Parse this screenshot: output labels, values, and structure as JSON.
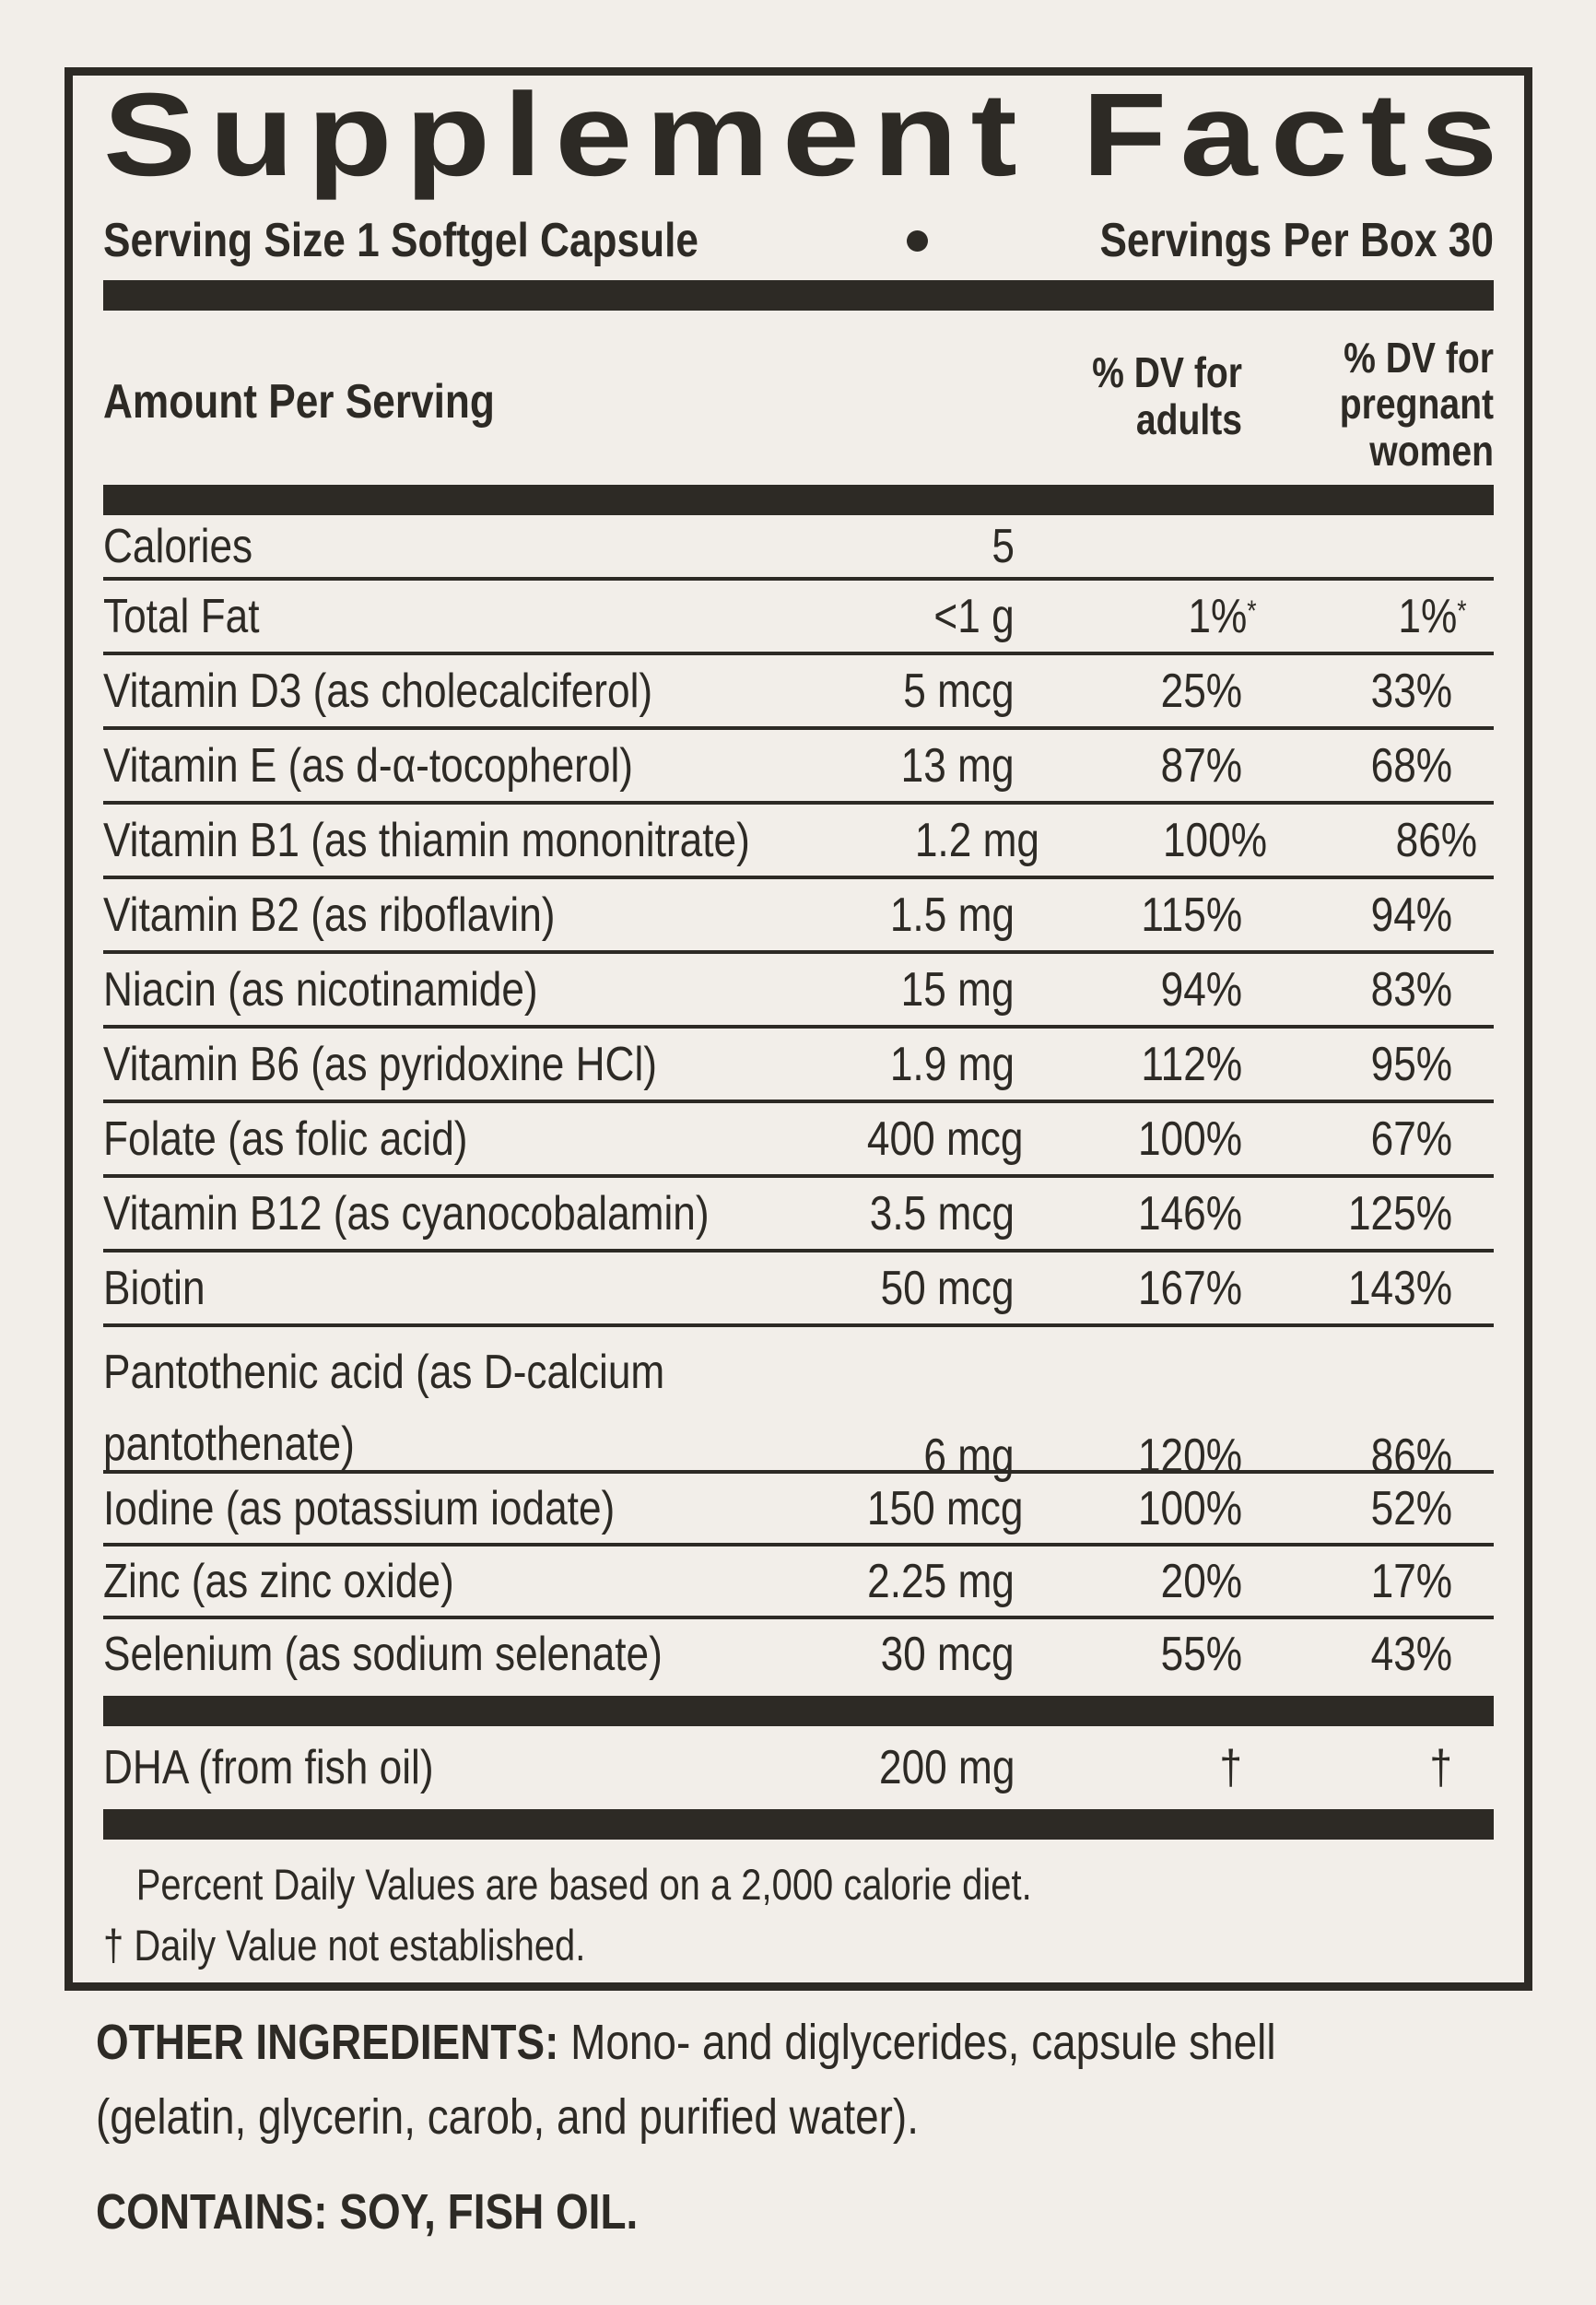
{
  "title": "Supplement Facts",
  "serving": {
    "size_label": "Serving Size 1 Softgel Capsule",
    "per_box_label": "Servings Per Box 30"
  },
  "columns": {
    "amount": "Amount Per Serving",
    "adults_line1": "% DV for",
    "adults_line2": "adults",
    "pregnant_line1": "% DV for",
    "pregnant_line2": "pregnant",
    "pregnant_line3": "women"
  },
  "rows": [
    {
      "name": "Calories",
      "amount": "5",
      "adults": "",
      "pregnant": ""
    },
    {
      "name": "Total Fat",
      "amount": "<1 g",
      "adults": "1%",
      "adults_sup": "*",
      "pregnant": "1%",
      "pregnant_sup": "*"
    },
    {
      "name": "Vitamin D3 (as cholecalciferol)",
      "amount": "5 mcg",
      "adults": "25%",
      "pregnant": "33%"
    },
    {
      "name": "Vitamin E (as d-α-tocopherol)",
      "amount": "13 mg",
      "adults": "87%",
      "pregnant": "68%"
    },
    {
      "name": "Vitamin B1 (as thiamin mononitrate)",
      "amount": "1.2 mg",
      "adults": "100%",
      "pregnant": "86%"
    },
    {
      "name": "Vitamin B2 (as riboflavin)",
      "amount": "1.5 mg",
      "adults": "115%",
      "pregnant": "94%"
    },
    {
      "name": "Niacin (as nicotinamide)",
      "amount": "15 mg",
      "adults": "94%",
      "pregnant": "83%"
    },
    {
      "name": "Vitamin B6 (as pyridoxine HCl)",
      "amount": "1.9 mg",
      "adults": "112%",
      "pregnant": "95%"
    },
    {
      "name": "Folate (as folic acid)",
      "amount": "400 mcg",
      "adults": "100%",
      "pregnant": "67%"
    },
    {
      "name": "Vitamin B12 (as cyanocobalamin)",
      "amount": "3.5 mcg",
      "adults": "146%",
      "pregnant": "125%"
    },
    {
      "name": "Biotin",
      "amount": "50 mcg",
      "adults": "167%",
      "pregnant": "143%"
    },
    {
      "name_line1": "Pantothenic acid (as D-calcium",
      "name_line2": "pantothenate)",
      "amount": "6 mg",
      "adults": "120%",
      "pregnant": "86%"
    },
    {
      "name": "Iodine (as potassium iodate)",
      "amount": "150 mcg",
      "adults": "100%",
      "pregnant": "52%"
    },
    {
      "name": "Zinc (as zinc oxide)",
      "amount": "2.25 mg",
      "adults": "20%",
      "pregnant": "17%"
    },
    {
      "name": "Selenium (as sodium selenate)",
      "amount": "30 mcg",
      "adults": "55%",
      "pregnant": "43%"
    }
  ],
  "dha_row": {
    "name": "DHA (from fish oil)",
    "amount": "200 mg",
    "adults": "†",
    "pregnant": "†"
  },
  "footnotes": {
    "line1": "Percent Daily Values are based on a 2,000 calorie diet.",
    "line2": "† Daily Value not established."
  },
  "other_ingredients": {
    "heading": "OTHER INGREDIENTS:",
    "text": " Mono- and diglycerides, capsule shell (gelatin, glycerin, carob, and purified water)."
  },
  "contains": "CONTAINS: SOY, FISH OIL.",
  "colors": {
    "background": "#f2eee9",
    "ink": "#2d2a25"
  }
}
